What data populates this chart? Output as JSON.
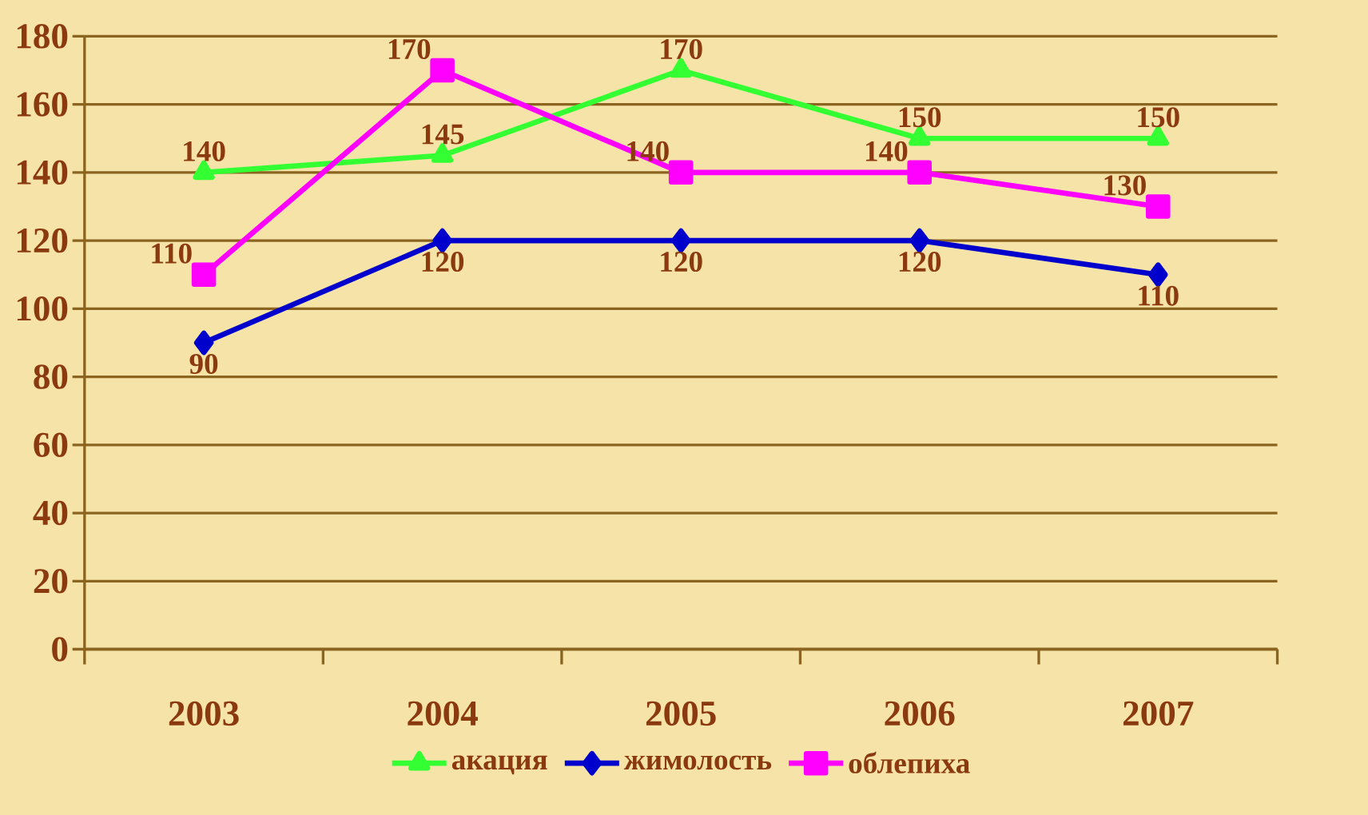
{
  "chart_data": {
    "type": "line",
    "categories": [
      "2003",
      "2004",
      "2005",
      "2006",
      "2007"
    ],
    "series": [
      {
        "name": "акация",
        "color": "#33ff33",
        "marker": "triangle",
        "values": [
          140,
          145,
          170,
          150,
          150
        ]
      },
      {
        "name": "жимолость",
        "color": "#0000cc",
        "marker": "diamond",
        "values": [
          90,
          120,
          120,
          120,
          110
        ]
      },
      {
        "name": "облепиха",
        "color": "#ff00ff",
        "marker": "square",
        "values": [
          110,
          170,
          140,
          140,
          130
        ]
      }
    ],
    "ylim": [
      0,
      180
    ],
    "yticks": [
      0,
      20,
      40,
      60,
      80,
      100,
      120,
      140,
      160,
      180
    ],
    "grid": "y",
    "legend": "bottom",
    "data_labels": true
  }
}
